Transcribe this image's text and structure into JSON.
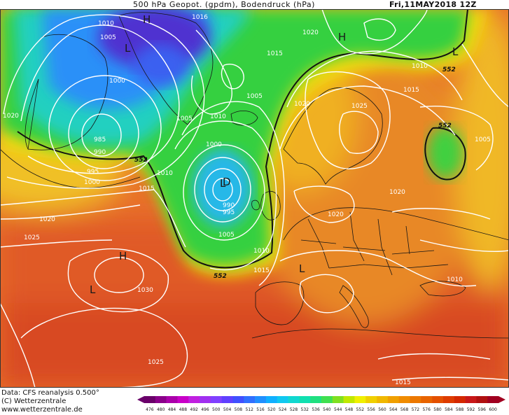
{
  "header": {
    "title": "500 hPa Geopot. (gpdm), Bodendruck (hPa)",
    "datetime": "Fri,11MAY2018 12Z"
  },
  "footer": {
    "source": "Data: CFS reanalysis 0.500°",
    "copyright": "(C) Wetterzentrale",
    "website": "www.wetterzentrale.de"
  },
  "colors": {
    "sea_blue_deep": "#5020c8",
    "blue": "#2090ff",
    "cyan": "#20d0d0",
    "green": "#30d040",
    "yellow": "#f0e000",
    "orange": "#f0a020",
    "red_orange": "#e06030",
    "isobar": "#ffffff",
    "coast": "#111111"
  },
  "legend": {
    "values": [
      "476",
      "480",
      "484",
      "488",
      "492",
      "496",
      "500",
      "504",
      "508",
      "512",
      "516",
      "520",
      "524",
      "528",
      "532",
      "536",
      "540",
      "544",
      "548",
      "552",
      "556",
      "560",
      "564",
      "568",
      "572",
      "576",
      "580",
      "584",
      "588",
      "592",
      "596",
      "600"
    ],
    "colors": [
      "#6a006a",
      "#8a008a",
      "#aa00aa",
      "#c800c8",
      "#c020e0",
      "#a030f0",
      "#8040ff",
      "#6040ff",
      "#4050ff",
      "#3070ff",
      "#2090ff",
      "#10b0ff",
      "#10c8f0",
      "#10d8d0",
      "#10e0b0",
      "#20e080",
      "#40e050",
      "#80e020",
      "#c0e800",
      "#f0f000",
      "#f0d000",
      "#f0b800",
      "#f0a000",
      "#f08c00",
      "#ec7800",
      "#e86400",
      "#e45000",
      "#de3c00",
      "#d42800",
      "#c81818",
      "#b01010",
      "#a00020"
    ]
  },
  "pressure_labels": [
    {
      "text": "1010",
      "pos": [
        140,
        27
      ]
    },
    {
      "text": "1005",
      "pos": [
        143,
        47
      ]
    },
    {
      "text": "1000",
      "pos": [
        156,
        109
      ]
    },
    {
      "text": "985",
      "pos": [
        134,
        193
      ]
    },
    {
      "text": "990",
      "pos": [
        134,
        211
      ]
    },
    {
      "text": "995",
      "pos": [
        124,
        239
      ]
    },
    {
      "text": "1000",
      "pos": [
        120,
        254
      ]
    },
    {
      "text": "1020",
      "pos": [
        4,
        159
      ]
    },
    {
      "text": "1015",
      "pos": [
        198,
        263
      ]
    },
    {
      "text": "1010",
      "pos": [
        224,
        241
      ]
    },
    {
      "text": "1005",
      "pos": [
        252,
        163
      ]
    },
    {
      "text": "1010",
      "pos": [
        300,
        160
      ]
    },
    {
      "text": "1000",
      "pos": [
        294,
        200
      ]
    },
    {
      "text": "990",
      "pos": [
        318,
        287
      ]
    },
    {
      "text": "995",
      "pos": [
        318,
        297
      ]
    },
    {
      "text": "1005",
      "pos": [
        312,
        329
      ]
    },
    {
      "text": "1010",
      "pos": [
        362,
        352
      ]
    },
    {
      "text": "1015",
      "pos": [
        362,
        380
      ]
    },
    {
      "text": "1005",
      "pos": [
        352,
        131
      ]
    },
    {
      "text": "1015",
      "pos": [
        381,
        70
      ]
    },
    {
      "text": "1020",
      "pos": [
        432,
        40
      ]
    },
    {
      "text": "1020",
      "pos": [
        420,
        142
      ]
    },
    {
      "text": "1025",
      "pos": [
        502,
        145
      ]
    },
    {
      "text": "1010",
      "pos": [
        588,
        88
      ]
    },
    {
      "text": "1015",
      "pos": [
        576,
        122
      ]
    },
    {
      "text": "1005",
      "pos": [
        678,
        193
      ]
    },
    {
      "text": "1020",
      "pos": [
        556,
        268
      ]
    },
    {
      "text": "1020",
      "pos": [
        468,
        300
      ]
    },
    {
      "text": "1010",
      "pos": [
        638,
        393
      ]
    },
    {
      "text": "1020",
      "pos": [
        56,
        307
      ]
    },
    {
      "text": "1025",
      "pos": [
        34,
        333
      ]
    },
    {
      "text": "1030",
      "pos": [
        196,
        408
      ]
    },
    {
      "text": "1025",
      "pos": [
        211,
        511
      ]
    },
    {
      "text": "1015",
      "pos": [
        564,
        540
      ]
    },
    {
      "text": "1016",
      "pos": [
        274,
        18
      ]
    }
  ],
  "contour_552_labels": [
    {
      "text": "552",
      "pos": [
        632,
        93
      ]
    },
    {
      "text": "552",
      "pos": [
        626,
        173
      ]
    },
    {
      "text": "552",
      "pos": [
        192,
        222
      ]
    },
    {
      "text": "552",
      "pos": [
        305,
        388
      ]
    }
  ],
  "centers": [
    {
      "text": "L",
      "pos": [
        178,
        68
      ]
    },
    {
      "text": "H",
      "pos": [
        204,
        27
      ]
    },
    {
      "text": "H",
      "pos": [
        483,
        52
      ]
    },
    {
      "text": "L",
      "pos": [
        314,
        261
      ]
    },
    {
      "text": "H",
      "pos": [
        170,
        365
      ]
    },
    {
      "text": "L",
      "pos": [
        128,
        413
      ]
    },
    {
      "text": "L",
      "pos": [
        427,
        383
      ]
    },
    {
      "text": "L",
      "pos": [
        646,
        73
      ]
    },
    {
      "text": "D",
      "pos": [
        318,
        259
      ]
    }
  ]
}
